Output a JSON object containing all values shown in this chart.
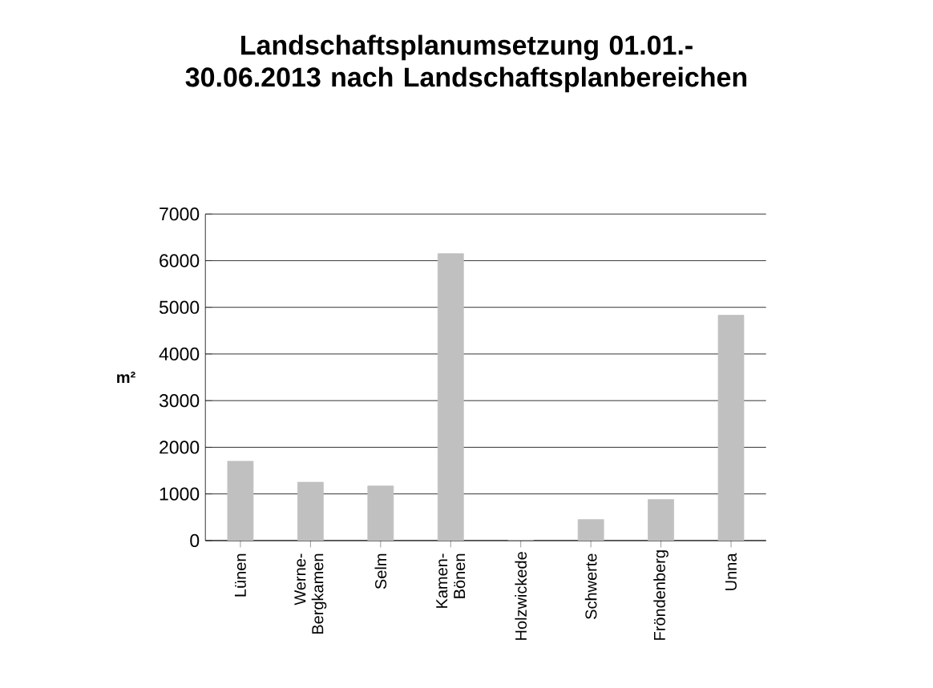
{
  "chart_data": {
    "type": "bar",
    "title": "Landschaftsplanumsetzung 01.01.-30.06.2013 nach Landschaftsplanbereichen",
    "ylabel": "m²",
    "categories": [
      "Lünen",
      "Werne-Bergkamen",
      "Selm",
      "Kamen-Bönen",
      "Holzwickede",
      "Schwerte",
      "Fröndenberg",
      "Unna"
    ],
    "values": [
      1700,
      1250,
      1170,
      6150,
      0,
      450,
      880,
      4830
    ],
    "color": "#c0c0c0",
    "ylim": [
      0,
      7000
    ],
    "yticks": [
      0,
      1000,
      2000,
      3000,
      4000,
      5000,
      6000,
      7000
    ],
    "grid": "y"
  }
}
